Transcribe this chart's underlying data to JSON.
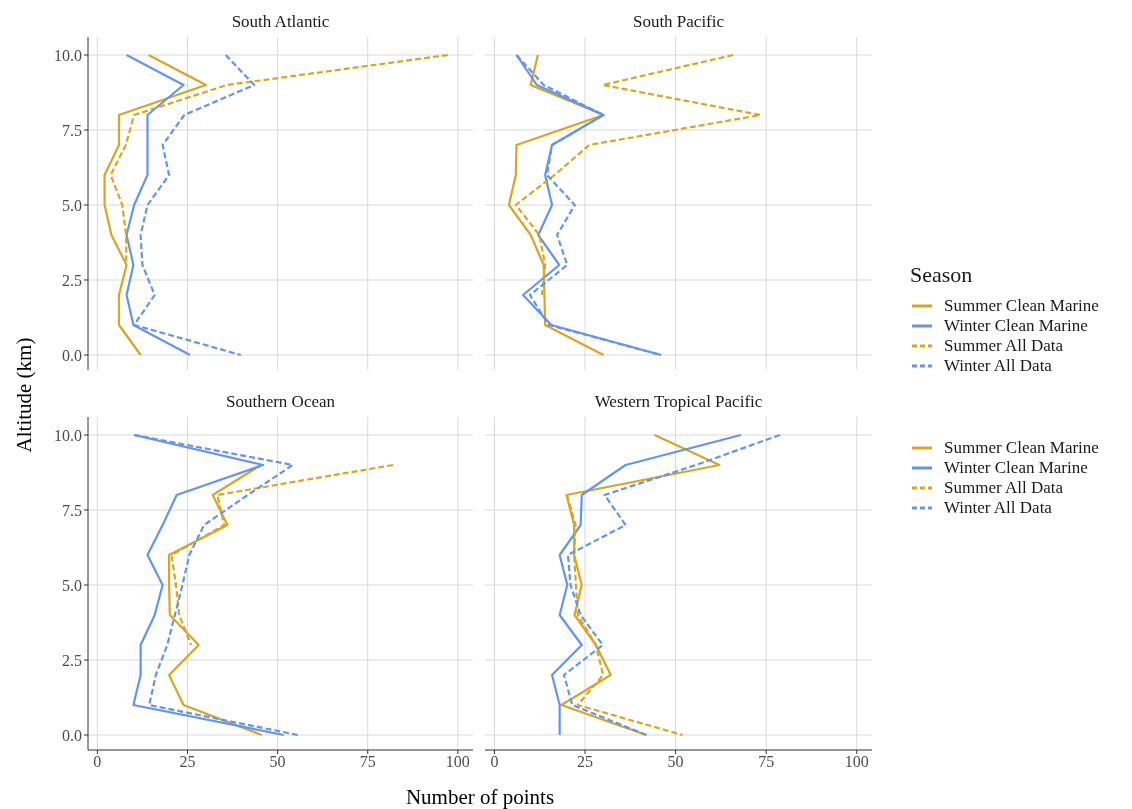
{
  "chart_data": [
    {
      "type": "line",
      "title": "South Atlantic",
      "ylabel": "Altitude (km)",
      "legend": "right",
      "legend_title": "Season",
      "grid": true,
      "tick_labels": "y",
      "xlim": [
        -2.6,
        104.2
      ],
      "ylim": [
        -0.5,
        10.6
      ],
      "xticks": [
        0,
        25,
        50,
        75,
        100
      ],
      "yticks": [
        {
          "value": 0,
          "label": "0.0"
        },
        {
          "value": 2.5,
          "label": "2.5"
        },
        {
          "value": 5,
          "label": "5.0"
        },
        {
          "value": 7.5,
          "label": "7.5"
        },
        {
          "value": 10,
          "label": "10.0"
        }
      ],
      "series": [
        {
          "name": "Summer Clean Marine",
          "color": "#daa520",
          "line_style": "solid",
          "x": [
            14.2,
            30.1,
            6,
            6,
            2,
            2,
            3.9,
            8.1,
            6,
            6,
            12
          ],
          "values": [
            10,
            9,
            8,
            7,
            6,
            5,
            4,
            3,
            2,
            1,
            0
          ]
        },
        {
          "name": "Winter Clean Marine",
          "color": "#6495ed",
          "line_style": "solid",
          "x": [
            8.1,
            23.9,
            13.9,
            13.9,
            13.9,
            10.2,
            8.1,
            10,
            8.1,
            10,
            25.7
          ],
          "values": [
            10,
            9,
            8,
            7,
            6,
            5,
            4,
            3,
            2,
            1,
            0
          ]
        },
        {
          "name": "Summer All Data",
          "color": "#daa520",
          "line_style": "dashed",
          "x": [
            97.2,
            36,
            10.2,
            7.9,
            3.7,
            6.9,
            8,
            8
          ],
          "values": [
            10,
            9,
            8,
            7,
            6,
            5,
            4,
            3
          ]
        },
        {
          "name": "Winter All Data",
          "color": "#6495ed",
          "line_style": "dashed",
          "x": [
            35.6,
            43.5,
            24.1,
            18.1,
            19.9,
            13.9,
            12,
            12.5,
            15.9,
            10.2,
            39.8
          ],
          "values": [
            10,
            9,
            8,
            7,
            6,
            5,
            4,
            3,
            2,
            1,
            0
          ]
        }
      ]
    },
    {
      "type": "line",
      "title": "South Pacific",
      "grid": true,
      "tick_labels": false,
      "xlim": [
        -2.6,
        104.2
      ],
      "ylim": [
        -0.5,
        10.6
      ],
      "xticks": [
        0,
        25,
        50,
        75,
        100
      ],
      "yticks": [
        0,
        2.5,
        5,
        7.5,
        10
      ],
      "series": [
        {
          "color": "#daa520",
          "line_style": "solid",
          "x": [
            12,
            10,
            30.1,
            6.1,
            5.9,
            4,
            10,
            13.6,
            13.8,
            14,
            30.1
          ],
          "values": [
            10,
            9,
            8,
            7,
            6,
            5,
            4,
            3,
            2,
            1,
            0
          ]
        },
        {
          "color": "#6495ed",
          "line_style": "solid",
          "x": [
            6.1,
            11.7,
            30.1,
            15.9,
            14,
            15.9,
            12.1,
            17.9,
            7.9,
            15.7,
            46
          ],
          "values": [
            10,
            9,
            8,
            7,
            6,
            5,
            4,
            3,
            2,
            1,
            0
          ]
        },
        {
          "color": "#daa520",
          "line_style": "dashed",
          "x": [
            65.9,
            29.9,
            73.4,
            26.2,
            16.6,
            5.9,
            12.4,
            14,
            13.1
          ],
          "values": [
            10,
            9,
            8,
            7,
            6,
            5,
            4,
            3,
            2
          ]
        },
        {
          "color": "#6495ed",
          "line_style": "dashed",
          "x": [
            6.1,
            13.6,
            30.1,
            15.9,
            14.5,
            22.2,
            17.3,
            20.1,
            9.8,
            15,
            46
          ],
          "values": [
            10,
            9,
            8,
            7,
            6,
            5,
            4,
            3,
            2,
            1,
            0
          ]
        }
      ]
    },
    {
      "type": "line",
      "title": "Southern Ocean",
      "xlabel": "Number of points",
      "grid": true,
      "xlim": [
        -2.6,
        104.2
      ],
      "ylim": [
        -0.5,
        10.6
      ],
      "xticks": [
        0,
        25,
        50,
        75,
        100
      ],
      "yticks": [
        {
          "value": 0,
          "label": "0.0"
        },
        {
          "value": 2.5,
          "label": "2.5"
        },
        {
          "value": 5,
          "label": "5.0"
        },
        {
          "value": 7.5,
          "label": "7.5"
        },
        {
          "value": 10,
          "label": "10.0"
        }
      ],
      "series": [
        {
          "color": "#daa520",
          "line_style": "solid",
          "x": [
            45.4,
            32,
            36.1,
            19.9,
            19.9,
            20.1,
            28.1,
            19.9,
            23.9,
            45.6
          ],
          "values": [
            9,
            8,
            7,
            6,
            5,
            4,
            3,
            2,
            1,
            0
          ]
        },
        {
          "color": "#6495ed",
          "line_style": "solid",
          "x": [
            10.2,
            46,
            22,
            18.1,
            13.9,
            18.1,
            15.9,
            12,
            12,
            10,
            51.7
          ],
          "values": [
            10,
            9,
            8,
            7,
            6,
            5,
            4,
            3,
            2,
            1,
            0
          ]
        },
        {
          "color": "#daa520",
          "line_style": "dashed",
          "x": [
            82,
            33.3,
            35.2,
            20.6,
            21.8,
            22.7,
            26
          ],
          "values": [
            9,
            8,
            7,
            6,
            5,
            4,
            3
          ]
        },
        {
          "color": "#6495ed",
          "line_style": "dashed",
          "x": [
            10.2,
            54.2,
            41.7,
            29.6,
            25.5,
            23.6,
            21.5,
            19.4,
            16.2,
            14.4,
            55.6
          ],
          "values": [
            10,
            9,
            8,
            7,
            6,
            5,
            4,
            3,
            2,
            1,
            0
          ]
        }
      ]
    },
    {
      "type": "line",
      "title": "Western Tropical Pacific",
      "grid": true,
      "tick_labels": "x",
      "xlim": [
        -2.6,
        104.2
      ],
      "ylim": [
        -0.5,
        10.6
      ],
      "xticks": [
        0,
        25,
        50,
        75,
        100
      ],
      "yticks": [
        0,
        2.5,
        5,
        7.5,
        10
      ],
      "series": [
        {
          "color": "#daa520",
          "line_style": "solid",
          "x": [
            44.2,
            62.1,
            19.9,
            22,
            22,
            24.1,
            22.1,
            28,
            32.1,
            18.5,
            41.9
          ],
          "values": [
            10,
            9,
            8,
            7,
            6,
            5,
            4,
            3,
            2,
            1,
            0
          ]
        },
        {
          "color": "#6495ed",
          "line_style": "solid",
          "x": [
            68,
            36.2,
            24.1,
            23.8,
            18,
            20.1,
            18,
            24.1,
            15.9,
            18,
            18
          ],
          "values": [
            10,
            9,
            8,
            7,
            6,
            5,
            4,
            3,
            2,
            1,
            0
          ]
        },
        {
          "color": "#daa520",
          "line_style": "dashed",
          "x": [
            20,
            22.4,
            22,
            22.5,
            23,
            28,
            30,
            23,
            51.9
          ],
          "values": [
            8,
            7,
            6,
            5,
            4,
            3,
            2,
            1,
            0
          ]
        },
        {
          "color": "#6495ed",
          "line_style": "dashed",
          "x": [
            78.8,
            55.6,
            30.4,
            36.2,
            20.3,
            21,
            23.8,
            29.9,
            19.2,
            21.5,
            42
          ],
          "values": [
            10,
            9,
            8,
            7,
            6,
            5,
            4,
            3,
            2,
            1,
            0
          ]
        }
      ]
    }
  ]
}
